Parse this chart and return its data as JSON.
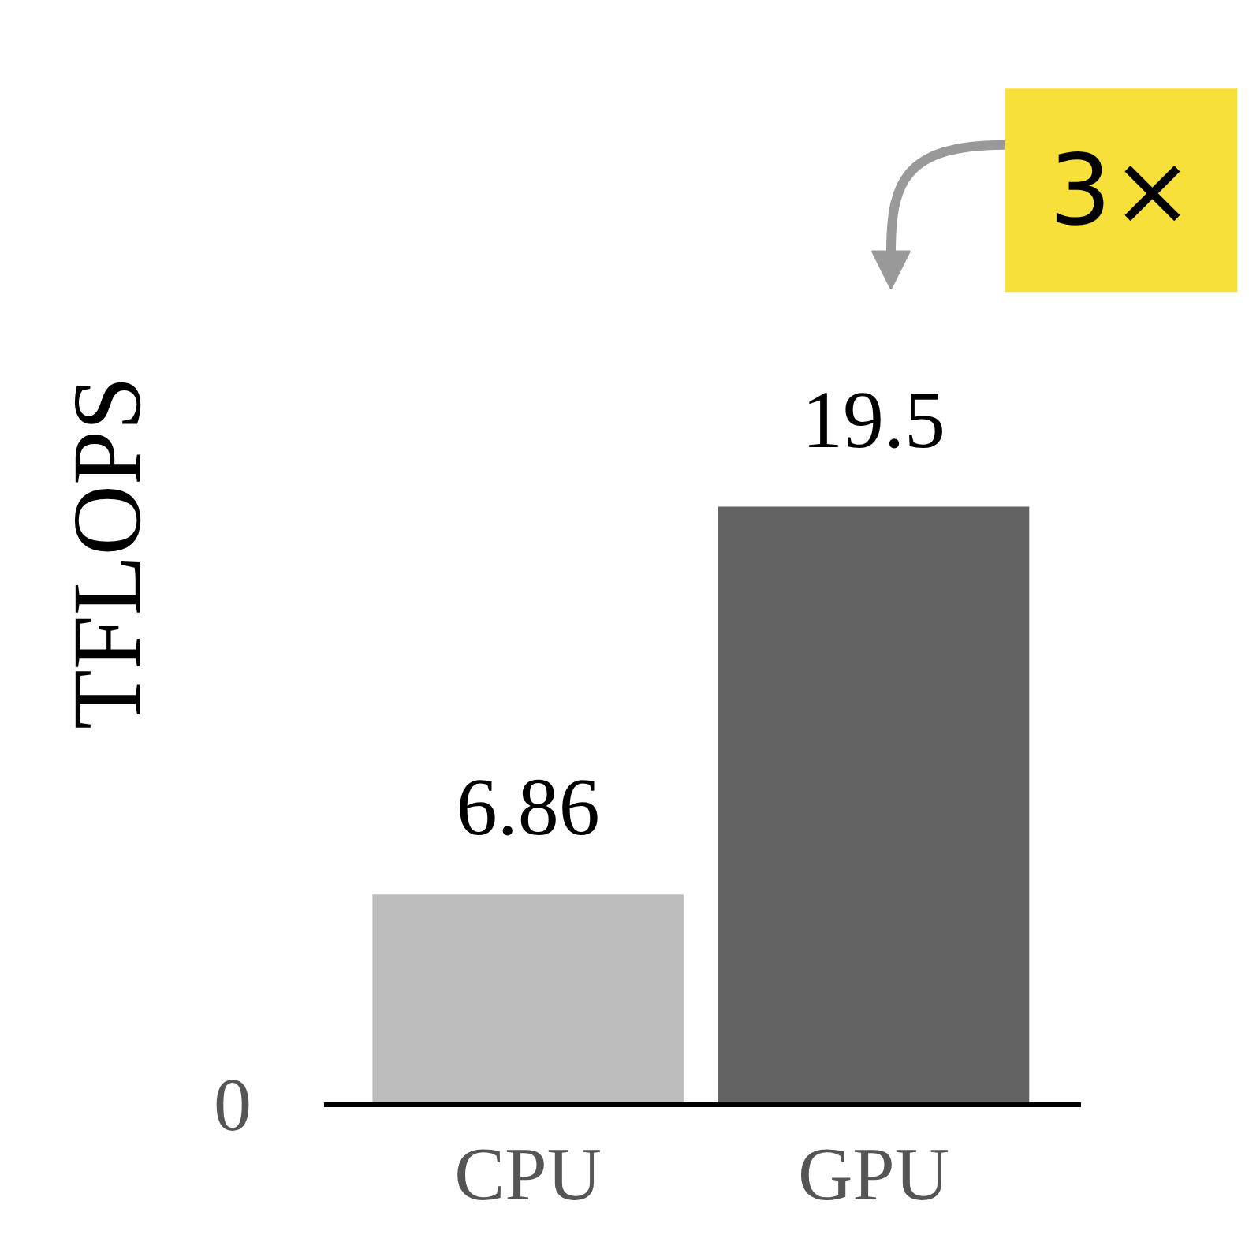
{
  "chart_data": {
    "type": "bar",
    "categories": [
      "CPU",
      "GPU"
    ],
    "values": [
      6.86,
      19.5
    ],
    "colors": [
      "#bdbdbd",
      "#636363"
    ],
    "ylabel": "TFLOPS",
    "data_labels": true,
    "grid": false,
    "annotations": [
      "3×",
      "0"
    ]
  }
}
